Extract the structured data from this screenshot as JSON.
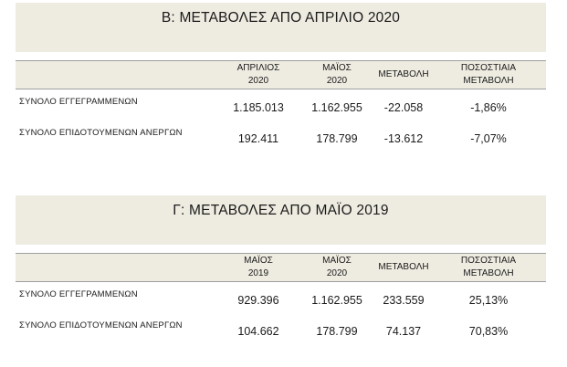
{
  "section_b": {
    "title": "Β: ΜΕΤΑΒΟΛΕΣ ΑΠΟ ΑΠΡΙΛΙΟ 2020",
    "headers": [
      {
        "line1": "ΑΠΡΙΛΙΟΣ",
        "line2": "2020"
      },
      {
        "line1": "ΜΑΪΟΣ",
        "line2": "2020"
      },
      {
        "line1": "ΜΕΤΑΒΟΛΗ",
        "line2": ""
      },
      {
        "line1": "ΠΟΣΟΣΤΙΑΙΑ",
        "line2": "ΜΕΤΑΒΟΛΗ"
      }
    ],
    "rows": [
      {
        "label": "ΣΥΝΟΛΟ ΕΓΓΕΓΡΑΜΜΕΝΩΝ",
        "values": [
          "1.185.013",
          "1.162.955",
          "-22.058",
          "-1,86%"
        ]
      },
      {
        "label": "ΣΥΝΟΛΟ ΕΠΙΔΟΤΟΥΜΕΝΩΝ ΑΝΕΡΓΩΝ",
        "values": [
          "192.411",
          "178.799",
          "-13.612",
          "-7,07%"
        ]
      }
    ]
  },
  "section_c": {
    "title": "Γ: ΜΕΤΑΒΟΛΕΣ ΑΠΟ ΜΑΪΟ 2019",
    "headers": [
      {
        "line1": "ΜΑΪΟΣ",
        "line2": "2019"
      },
      {
        "line1": "ΜΑΪΟΣ",
        "line2": "2020"
      },
      {
        "line1": "ΜΕΤΑΒΟΛΗ",
        "line2": ""
      },
      {
        "line1": "ΠΟΣΟΣΤΙΑΙΑ",
        "line2": "ΜΕΤΑΒΟΛΗ"
      }
    ],
    "rows": [
      {
        "label": "ΣΥΝΟΛΟ ΕΓΓΕΓΡΑΜΜΕΝΩΝ",
        "values": [
          "929.396",
          "1.162.955",
          "233.559",
          "25,13%"
        ]
      },
      {
        "label": "ΣΥΝΟΛΟ ΕΠΙΔΟΤΟΥΜΕΝΩΝ ΑΝΕΡΓΩΝ",
        "values": [
          "104.662",
          "178.799",
          "74.137",
          "70,83%"
        ]
      }
    ]
  }
}
